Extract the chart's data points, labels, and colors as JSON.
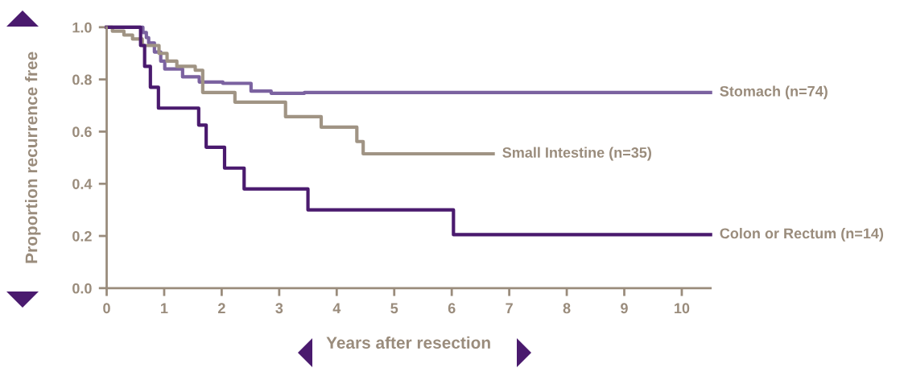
{
  "chart_data": {
    "type": "step",
    "xlabel": "Years after resection",
    "ylabel": "Proportion recurrence free",
    "xlim": [
      0,
      10.5
    ],
    "ylim": [
      0,
      1.0
    ],
    "xticks": [
      0,
      1,
      2,
      3,
      4,
      5,
      6,
      7,
      8,
      9,
      10
    ],
    "yticks": [
      {
        "value": 0,
        "label": "0.0"
      },
      {
        "value": 0.2,
        "label": "0.2"
      },
      {
        "value": 0.4,
        "label": "0.4"
      },
      {
        "value": 0.6,
        "label": "0.6"
      },
      {
        "value": 0.8,
        "label": "0.8"
      },
      {
        "value": 1.0,
        "label": "1.0"
      }
    ],
    "grid": false,
    "legend": false,
    "series": [
      {
        "name": "Stomach (n=74)",
        "color": "#7b62a0",
        "x": [
          0,
          0.63,
          0.69,
          0.73,
          0.83,
          0.94,
          1.01,
          1.32,
          1.61,
          2.02,
          2.51,
          2.86,
          3.44,
          10.5
        ],
        "values": [
          1.0,
          0.98,
          0.96,
          0.94,
          0.905,
          0.87,
          0.84,
          0.81,
          0.79,
          0.785,
          0.755,
          0.747,
          0.75,
          0.75
        ]
      },
      {
        "name": "Small Intestine (n=35)",
        "color": "#a09484",
        "x": [
          0,
          0.1,
          0.3,
          0.45,
          0.62,
          0.91,
          1.05,
          1.22,
          1.54,
          1.67,
          2.23,
          3.11,
          3.73,
          4.35,
          4.46,
          6.72
        ],
        "values": [
          1.0,
          0.985,
          0.97,
          0.955,
          0.93,
          0.9,
          0.87,
          0.85,
          0.835,
          0.75,
          0.713,
          0.657,
          0.617,
          0.562,
          0.515,
          0.515
        ]
      },
      {
        "name": "Colon or Rectum (n=14)",
        "color": "#4a1a6e",
        "x": [
          0,
          0.59,
          0.66,
          0.76,
          0.9,
          1.6,
          1.73,
          2.05,
          2.39,
          3.5,
          6.03,
          10.5
        ],
        "values": [
          1.0,
          0.93,
          0.85,
          0.77,
          0.69,
          0.625,
          0.54,
          0.46,
          0.38,
          0.3,
          0.205,
          0.205
        ]
      }
    ]
  }
}
